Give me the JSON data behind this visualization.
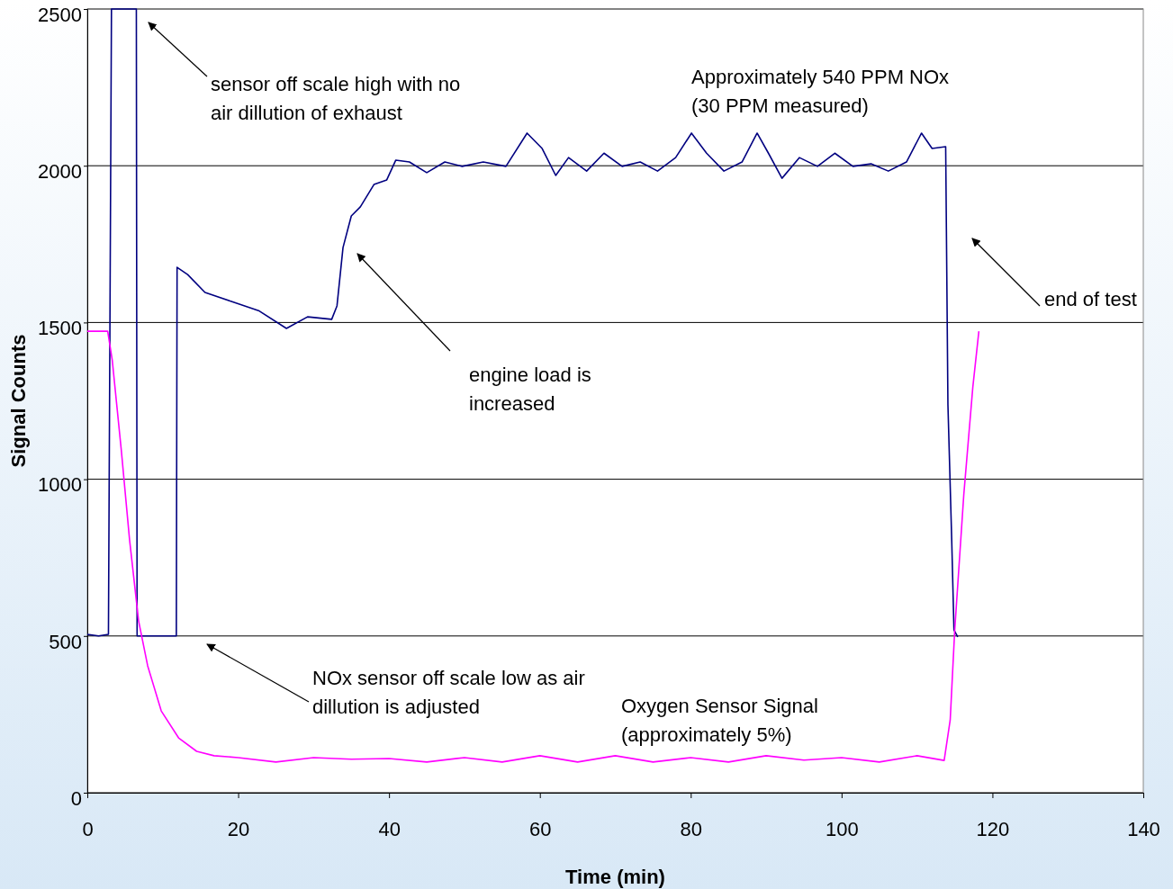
{
  "chart_data": {
    "type": "line",
    "xlabel": "Time (min)",
    "ylabel": "Signal Counts",
    "xlim": [
      0,
      140
    ],
    "xticks": [
      0,
      20,
      40,
      60,
      80,
      100,
      120,
      140
    ],
    "ylim": [
      0,
      2500
    ],
    "yticks": [
      0,
      500,
      1000,
      1500,
      2000,
      2500
    ],
    "grid": "y",
    "marker": "none",
    "line_style": "solid",
    "series": [
      {
        "name": "Approximately 540 PPM NOx (30 PPM measured)",
        "color": "#000080",
        "x": [
          0,
          1.5,
          2.8,
          3.2,
          6.5,
          6.6,
          11.8,
          11.9,
          13.3,
          15.6,
          19.1,
          22.7,
          26.4,
          29.2,
          32.4,
          33.1,
          33.9,
          35.0,
          36.2,
          38.0,
          39.7,
          40.9,
          42.7,
          45.0,
          47.4,
          49.7,
          52.5,
          55.5,
          58.3,
          60.3,
          62.1,
          63.8,
          66.2,
          68.5,
          70.9,
          73.3,
          75.6,
          78.0,
          80.1,
          82.1,
          84.4,
          86.8,
          88.8,
          90.3,
          92.1,
          94.4,
          96.8,
          99.1,
          101.5,
          103.9,
          106.2,
          108.6,
          110.6,
          112.0,
          113.8,
          114.1,
          114.6,
          114.9,
          115.4
        ],
        "values": [
          505,
          500,
          505,
          2500,
          2500,
          500,
          500,
          1676,
          1653,
          1596,
          1567,
          1538,
          1481,
          1518,
          1510,
          1553,
          1739,
          1840,
          1869,
          1940,
          1955,
          2018,
          2012,
          1978,
          2012,
          1998,
          2012,
          1998,
          2104,
          2055,
          1969,
          2026,
          1983,
          2040,
          1998,
          2012,
          1983,
          2026,
          2104,
          2040,
          1983,
          2012,
          2104,
          2040,
          1960,
          2026,
          1998,
          2040,
          1998,
          2006,
          1983,
          2012,
          2104,
          2055,
          2061,
          1237,
          807,
          519,
          497
        ]
      },
      {
        "name": "Oxygen Sensor Signal (approximately 5%)",
        "color": "#ff00ff",
        "x": [
          0,
          2.7,
          3.3,
          4.5,
          5.6,
          6.8,
          8.0,
          9.8,
          12.1,
          14.5,
          16.8,
          20,
          25,
          30,
          35,
          40,
          45,
          50,
          55,
          60,
          65,
          70,
          75,
          80,
          85,
          90,
          95,
          100,
          105,
          110,
          113.6,
          114.4,
          115.0,
          116.2,
          117.4,
          118.2
        ],
        "values": [
          1472,
          1472,
          1381,
          1094,
          807,
          548,
          405,
          261,
          175,
          132,
          118,
          112,
          98,
          112,
          107,
          109,
          98,
          112,
          98,
          118,
          98,
          118,
          98,
          112,
          98,
          118,
          104,
          112,
          98,
          118,
          103,
          232,
          519,
          950,
          1294,
          1472
        ]
      }
    ],
    "annotations": [
      "sensor off scale high with no air dillution of exhaust",
      "engine load is increased",
      "end of test",
      "NOx sensor off scale low as air dillution is adjusted"
    ]
  }
}
